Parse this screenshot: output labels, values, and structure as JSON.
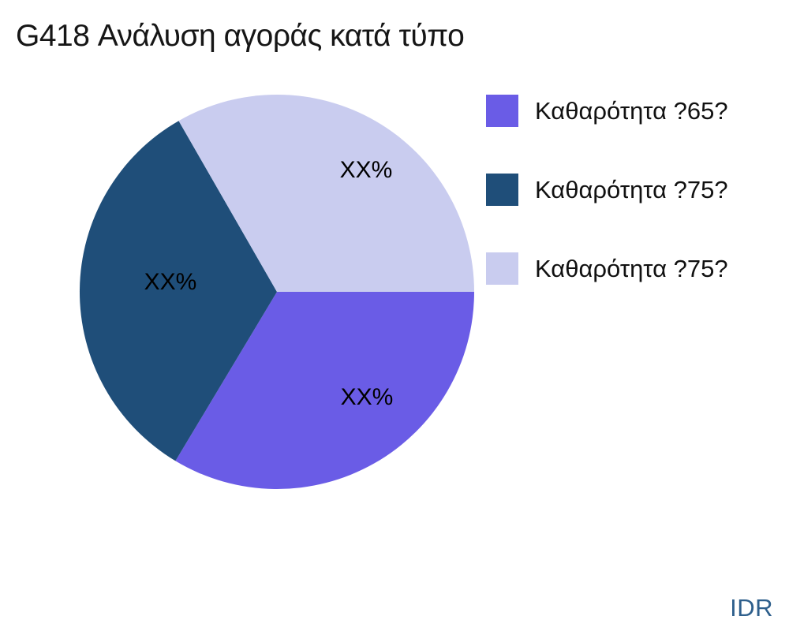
{
  "title": "G418 Ανάλυση αγοράς κατά τύπο",
  "watermark": "IDR",
  "colors": {
    "background": "#ffffff",
    "title_text": "#161616",
    "label_text": "#000000",
    "watermark_text": "#2E5F8C"
  },
  "chart_data": {
    "type": "pie",
    "title": "G418 Ανάλυση αγοράς κατά τύπο",
    "start_angle_deg": 0,
    "direction": "clockwise",
    "legend_position": "right",
    "slices": [
      {
        "name": "Καθαρότητα ?65?",
        "value": 33.6,
        "label": "XX%",
        "color": "#6A5CE6"
      },
      {
        "name": "Καθαρότητα ?75?",
        "value": 33.1,
        "label": "XX%",
        "color": "#1F4E79"
      },
      {
        "name": "Καθαρότητα ?75?",
        "value": 33.3,
        "label": "XX%",
        "color": "#C9CCEF"
      }
    ]
  }
}
